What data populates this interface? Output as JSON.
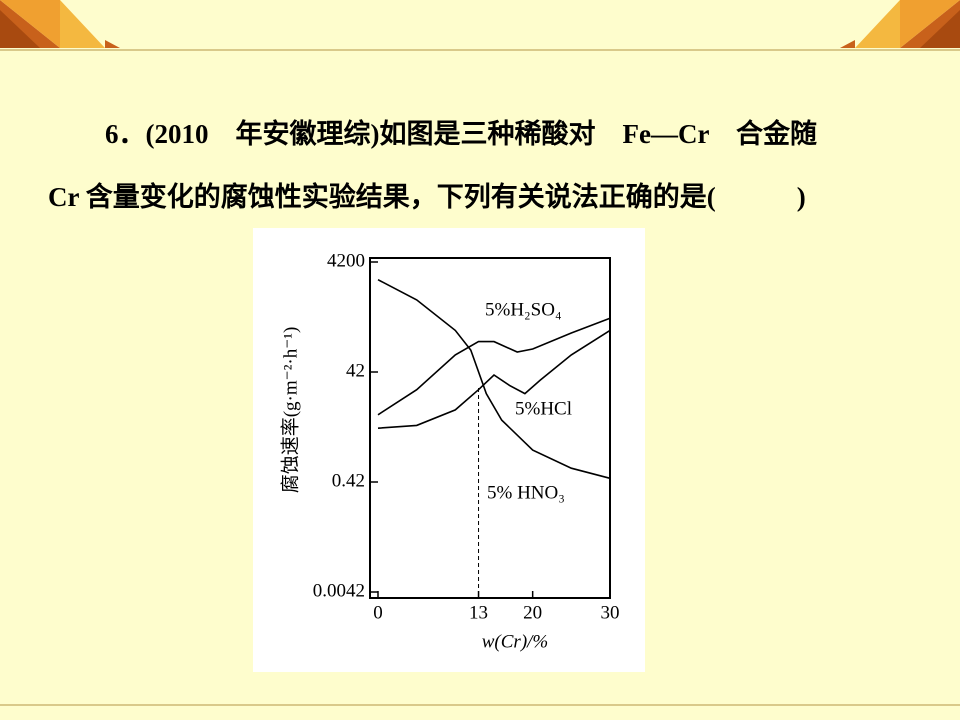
{
  "question": {
    "lines": [
      "6．(2010　年安徽理综)如图是三种稀酸对　Fe—Cr　合金随",
      "Cr 含量变化的腐蚀性实验结果，下列有关说法正确的是(　　　)"
    ]
  },
  "chart_data": {
    "type": "line",
    "y_label": "腐蚀速率(g·m⁻²·h⁻¹)",
    "x_label": "w(Cr)/%",
    "ylim": [
      0.0042,
      4200
    ],
    "yticks": [
      0.0042,
      0.42,
      42,
      4200
    ],
    "log_y": true,
    "xlim": [
      0,
      30
    ],
    "xticks": [
      0,
      13,
      20,
      30
    ],
    "dashed_x": 13,
    "series": [
      {
        "name": "5%H₂SO₄",
        "color": "#000000",
        "x": [
          0,
          5,
          10,
          13,
          15,
          18,
          20,
          25,
          30
        ],
        "values": [
          7,
          20,
          86,
          150,
          150,
          97,
          110,
          215,
          400
        ]
      },
      {
        "name": "5%HCl",
        "color": "#000000",
        "x": [
          0,
          5,
          10,
          13,
          15,
          17,
          19,
          21,
          25,
          30
        ],
        "values": [
          4,
          4.5,
          8.6,
          20,
          37,
          24,
          17,
          30,
          86,
          240
        ]
      },
      {
        "name": "5% HNO₃",
        "color": "#000000",
        "x": [
          0,
          5,
          10,
          12,
          14,
          16,
          20,
          25,
          30
        ],
        "values": [
          2000,
          860,
          240,
          105,
          17,
          5.6,
          1.6,
          0.75,
          0.49
        ]
      }
    ]
  }
}
